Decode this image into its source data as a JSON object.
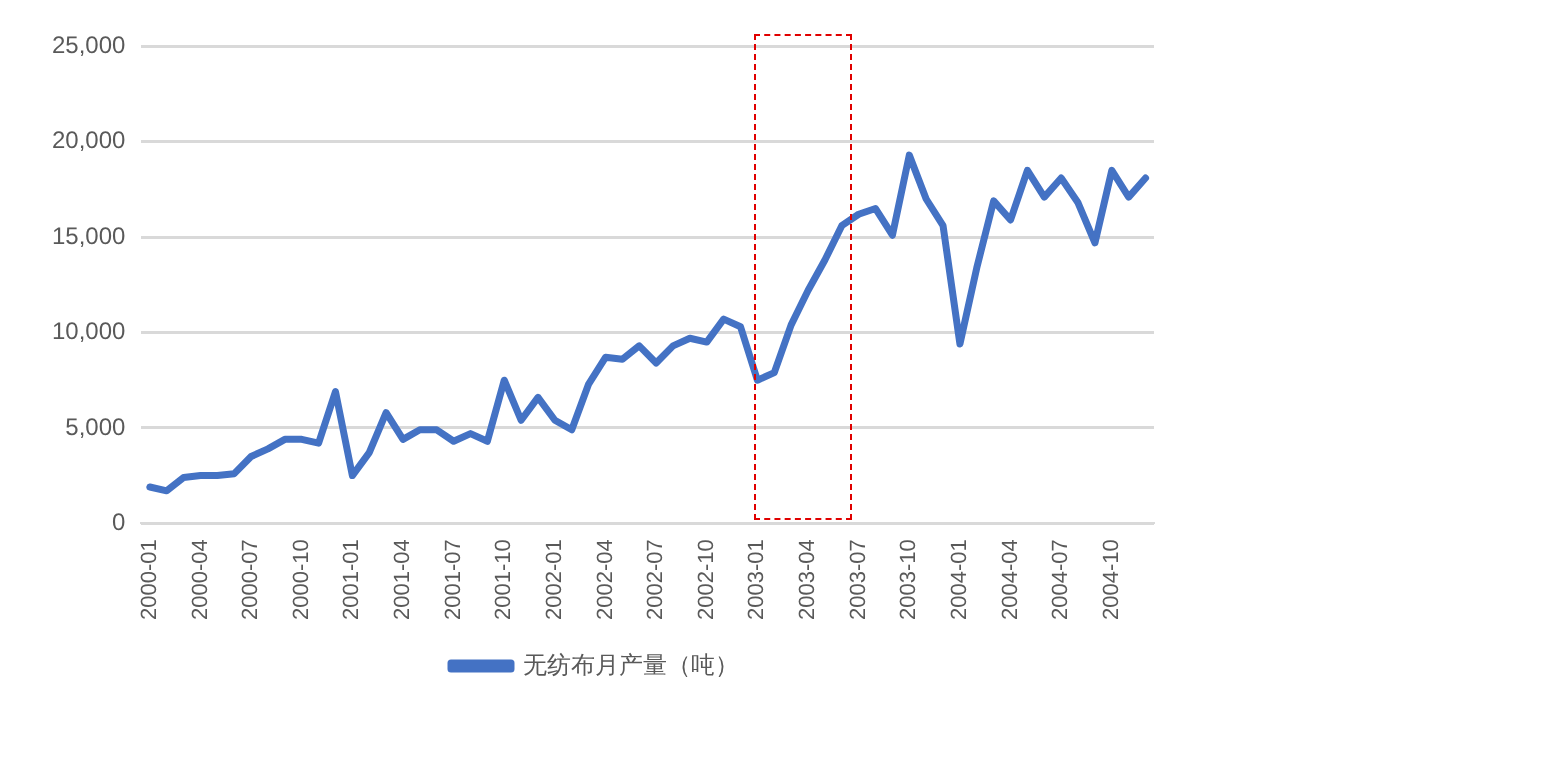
{
  "chart_data": {
    "type": "line",
    "categories": [
      "2000-01",
      null,
      null,
      "2000-04",
      null,
      null,
      "2000-07",
      null,
      null,
      "2000-10",
      null,
      null,
      "2001-01",
      null,
      null,
      "2001-04",
      null,
      null,
      "2001-07",
      null,
      null,
      "2001-10",
      null,
      null,
      "2002-01",
      null,
      null,
      "2002-04",
      null,
      null,
      "2002-07",
      null,
      null,
      "2002-10",
      null,
      null,
      "2003-01",
      null,
      null,
      "2003-04",
      null,
      null,
      "2003-07",
      null,
      null,
      "2003-10",
      null,
      null,
      "2004-01",
      null,
      null,
      "2004-04",
      null,
      null,
      "2004-07",
      null,
      null,
      "2004-10",
      null,
      null
    ],
    "series": [
      {
        "name": "无纺布月产量（吨）",
        "color": "#4472c4",
        "values": [
          1900,
          1700,
          2400,
          2500,
          2500,
          2600,
          3500,
          3900,
          4400,
          4400,
          4200,
          6900,
          2500,
          3700,
          5800,
          4400,
          4900,
          4900,
          4300,
          4700,
          4300,
          7500,
          5400,
          6600,
          5400,
          4900,
          7300,
          8700,
          8600,
          9300,
          8400,
          9300,
          9700,
          9500,
          10700,
          10300,
          7500,
          7900,
          10400,
          12200,
          13800,
          15600,
          16200,
          16500,
          15100,
          19300,
          17000,
          15600,
          9400,
          13400,
          16900,
          15900,
          18500,
          17100,
          18100,
          16800,
          14700,
          18500,
          17100,
          18100
        ]
      }
    ],
    "ylim": [
      0,
      25000
    ],
    "yticks": [
      0,
      {
        "value": 5000,
        "label": "5,000"
      },
      {
        "value": 10000,
        "label": "10,000"
      },
      {
        "value": 15000,
        "label": "15,000"
      },
      {
        "value": 20000,
        "label": "20,000"
      },
      {
        "value": 25000,
        "label": "25,000"
      }
    ],
    "grid": "y",
    "legend": "bottom",
    "marker": "none",
    "line_style": "solid"
  }
}
